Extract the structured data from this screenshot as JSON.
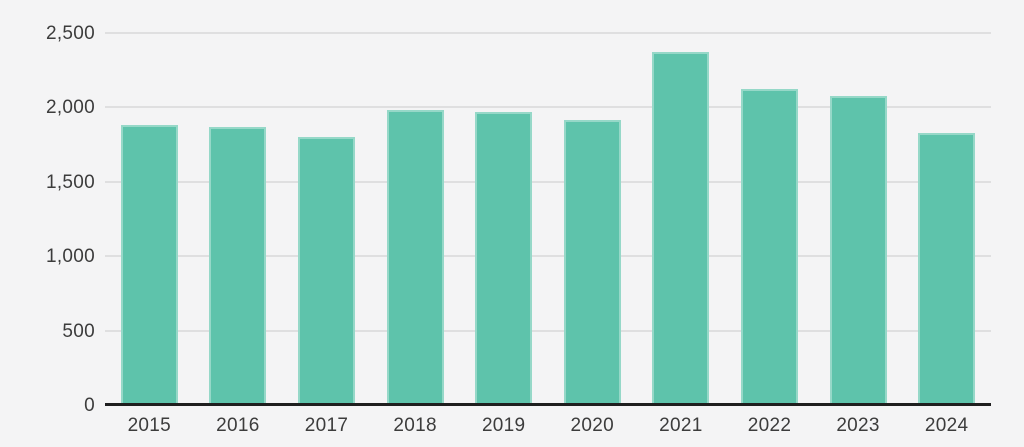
{
  "chart_data": {
    "type": "bar",
    "title": "",
    "xlabel": "",
    "ylabel": "",
    "categories": [
      "2015",
      "2016",
      "2017",
      "2018",
      "2019",
      "2020",
      "2021",
      "2022",
      "2023",
      "2024"
    ],
    "values": [
      1880,
      1870,
      1800,
      1985,
      1970,
      1915,
      2370,
      2125,
      2075,
      1825
    ],
    "ylim": [
      0,
      2500
    ],
    "yticks": [
      0,
      500,
      1000,
      1500,
      2000,
      2500
    ],
    "ytick_labels": [
      "0",
      "500",
      "1,000",
      "1,500",
      "2,000",
      "2,500"
    ],
    "grid": "horizontal-gridlines-on",
    "legend": "none",
    "colors": {
      "bar_fill": "#5ec3ab",
      "bar_edge": "rgba(255,255,255,0.35)",
      "background": "#f4f4f5",
      "gridline": "#dfdfe0",
      "axis_line": "#1f1f1f",
      "label": "#3c3c3c"
    }
  }
}
